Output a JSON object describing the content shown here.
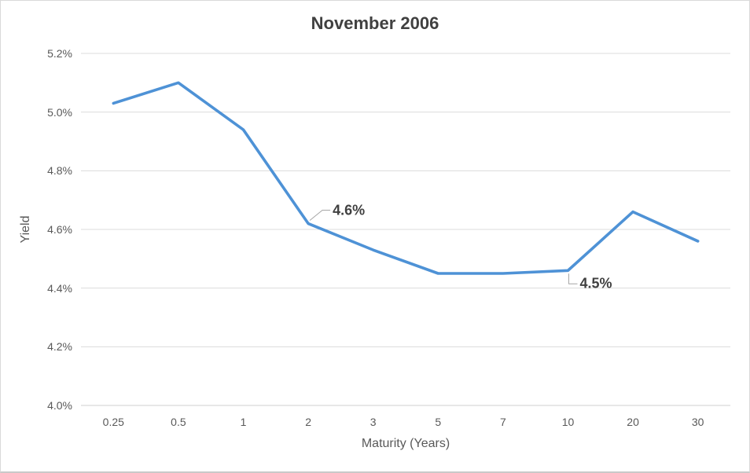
{
  "title": "November 2006",
  "colors": {
    "line": "#4e92d6",
    "gridline": "#dcdcdc",
    "axis_line": "#cfcfcf",
    "leader_line": "#a6a6a6",
    "tick_text": "#595959",
    "title_text": "#404040"
  },
  "chart_data": {
    "type": "line",
    "title": "November 2006",
    "xlabel": "Maturity (Years)",
    "ylabel": "Yield",
    "categories": [
      "0.25",
      "0.5",
      "1",
      "2",
      "3",
      "5",
      "7",
      "10",
      "20",
      "30"
    ],
    "series": [
      {
        "name": "Yield",
        "values": [
          5.03,
          5.1,
          4.94,
          4.62,
          4.53,
          4.45,
          4.45,
          4.46,
          4.66,
          4.56
        ]
      }
    ],
    "ylim": [
      4.0,
      5.2
    ],
    "y_ticks": [
      4.0,
      4.2,
      4.4,
      4.6,
      4.8,
      5.0,
      5.2
    ],
    "y_tick_labels": [
      "4.0%",
      "4.2%",
      "4.4%",
      "4.6%",
      "4.8%",
      "5.0%",
      "5.2%"
    ],
    "grid": "horizontal",
    "legend": "none",
    "annotations": [
      {
        "index": 3,
        "text": "4.6%",
        "placement": "above-right"
      },
      {
        "index": 7,
        "text": "4.5%",
        "placement": "below-right"
      }
    ]
  }
}
